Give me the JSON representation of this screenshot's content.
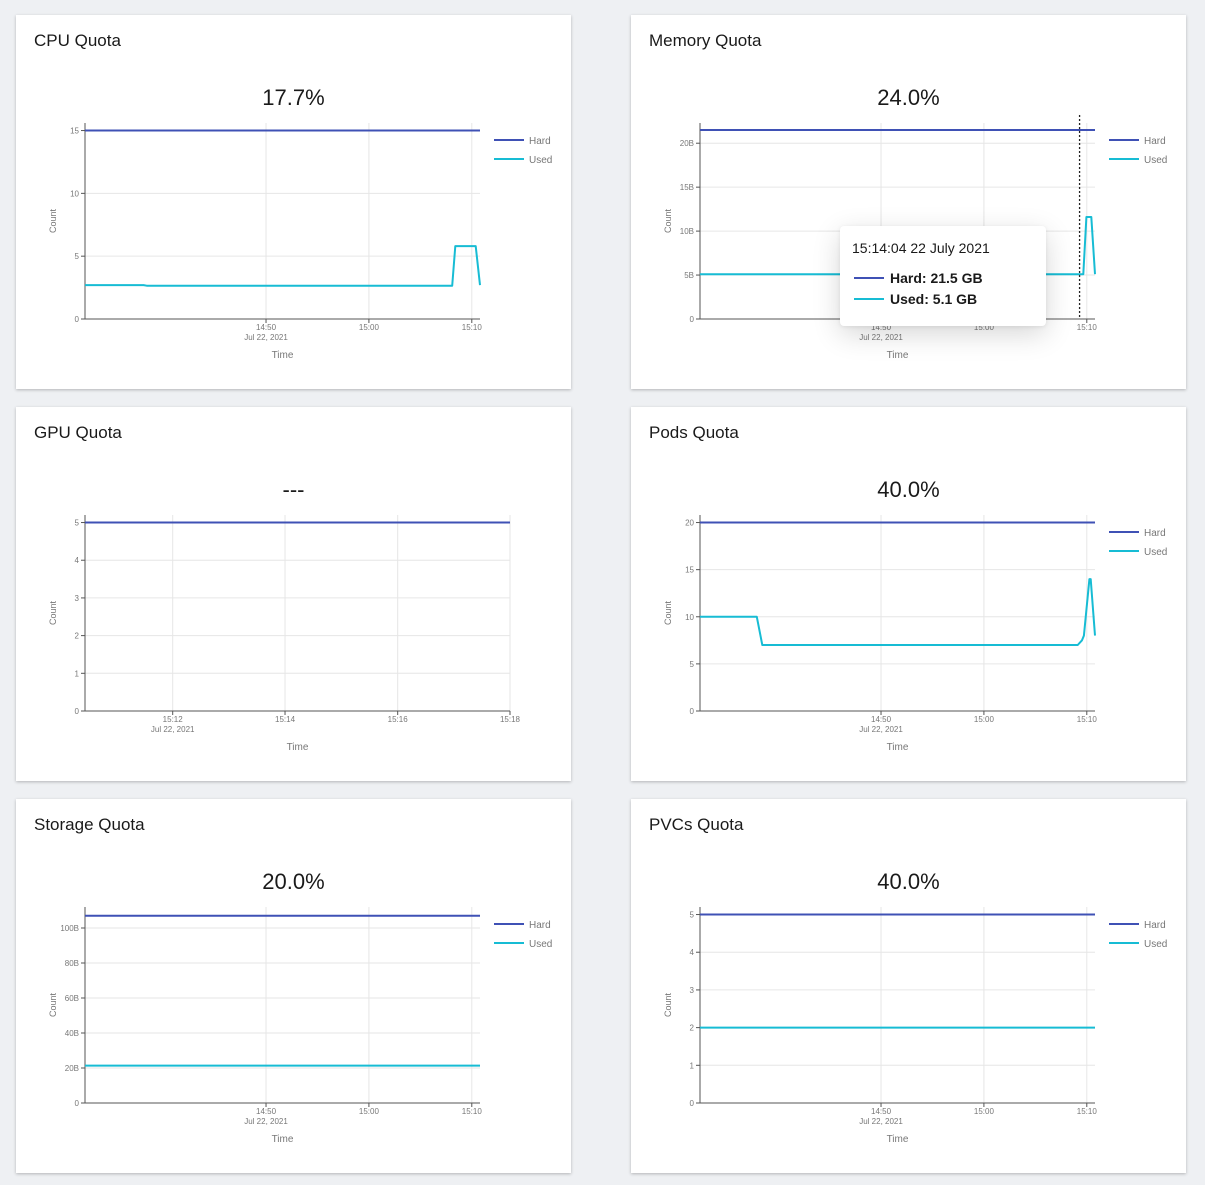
{
  "colors": {
    "hard": "#3f51b5",
    "used": "#17bcd4",
    "grid": "#e6e6e6",
    "axis": "#555555",
    "text": "#777777"
  },
  "common": {
    "ylabel": "Count",
    "xlabel": "Time",
    "legend_hard": "Hard",
    "legend_used": "Used"
  },
  "tooltip": {
    "time": "15:14:04 22 July 2021",
    "hard_label": "Hard: 21.5 GB",
    "used_label": "Used: 5.1 GB"
  },
  "chart_data": [
    {
      "type": "line",
      "title": "CPU Quota",
      "value_text": "17.7%",
      "xlabel": "Time",
      "ylabel": "Count",
      "x_range": [
        14.54,
        15.18
      ],
      "ylim": [
        0,
        15.6
      ],
      "y_ticks": [
        {
          "v": 0,
          "label": "0"
        },
        {
          "v": 5,
          "label": "5"
        },
        {
          "v": 10,
          "label": "10"
        },
        {
          "v": 15,
          "label": "15"
        }
      ],
      "x_ticks": [
        {
          "v": 14.8333,
          "label": "14:50",
          "sub": "Jul 22, 2021"
        },
        {
          "v": 15.0,
          "label": "15:00"
        },
        {
          "v": 15.1667,
          "label": "15:10"
        }
      ],
      "legend": true,
      "series": [
        {
          "name": "Hard",
          "x": [
            14.54,
            15.18
          ],
          "y": [
            15,
            15
          ]
        },
        {
          "name": "Used",
          "x": [
            14.54,
            14.635,
            14.64,
            15.135,
            15.14,
            15.171,
            15.173,
            15.18
          ],
          "y": [
            2.7,
            2.7,
            2.65,
            2.65,
            5.8,
            5.8,
            5.8,
            2.7
          ]
        }
      ]
    },
    {
      "type": "line",
      "title": "Memory Quota",
      "value_text": "24.0%",
      "xlabel": "Time",
      "ylabel": "Count",
      "x_range": [
        14.54,
        15.18
      ],
      "ylim": [
        0,
        22.3
      ],
      "y_ticks": [
        {
          "v": 0,
          "label": "0"
        },
        {
          "v": 5,
          "label": "5B"
        },
        {
          "v": 10,
          "label": "10B"
        },
        {
          "v": 15,
          "label": "15B"
        },
        {
          "v": 20,
          "label": "20B"
        }
      ],
      "x_ticks": [
        {
          "v": 14.8333,
          "label": "14:50",
          "sub": "Jul 22, 2021"
        },
        {
          "v": 15.0,
          "label": "15:00"
        },
        {
          "v": 15.1667,
          "label": "15:10"
        }
      ],
      "legend": true,
      "cursor_x": 15.155,
      "tooltip": true,
      "series": [
        {
          "name": "Hard",
          "x": [
            14.54,
            15.18
          ],
          "y": [
            21.5,
            21.5
          ]
        },
        {
          "name": "Used",
          "x": [
            14.54,
            15.14,
            15.161,
            15.166,
            15.174,
            15.18
          ],
          "y": [
            5.1,
            5.1,
            5.1,
            11.6,
            11.6,
            5.1
          ]
        }
      ]
    },
    {
      "type": "line",
      "title": "GPU Quota",
      "value_text": "---",
      "xlabel": "Time",
      "ylabel": "Count",
      "x_range": [
        15.174,
        15.3
      ],
      "ylim": [
        0,
        5.2
      ],
      "y_ticks": [
        {
          "v": 0,
          "label": "0"
        },
        {
          "v": 1,
          "label": "1"
        },
        {
          "v": 2,
          "label": "2"
        },
        {
          "v": 3,
          "label": "3"
        },
        {
          "v": 4,
          "label": "4"
        },
        {
          "v": 5,
          "label": "5"
        }
      ],
      "x_ticks": [
        {
          "v": 15.2,
          "label": "15:12",
          "sub": "Jul 22, 2021"
        },
        {
          "v": 15.2333,
          "label": "15:14"
        },
        {
          "v": 15.2667,
          "label": "15:16"
        },
        {
          "v": 15.3,
          "label": "15:18"
        }
      ],
      "legend": false,
      "series": [
        {
          "name": "Hard",
          "x": [
            15.174,
            15.3
          ],
          "y": [
            5,
            5
          ]
        }
      ]
    },
    {
      "type": "line",
      "title": "Pods Quota",
      "value_text": "40.0%",
      "xlabel": "Time",
      "ylabel": "Count",
      "x_range": [
        14.54,
        15.18
      ],
      "ylim": [
        0,
        20.8
      ],
      "y_ticks": [
        {
          "v": 0,
          "label": "0"
        },
        {
          "v": 5,
          "label": "5"
        },
        {
          "v": 10,
          "label": "10"
        },
        {
          "v": 15,
          "label": "15"
        },
        {
          "v": 20,
          "label": "20"
        }
      ],
      "x_ticks": [
        {
          "v": 14.8333,
          "label": "14:50",
          "sub": "Jul 22, 2021"
        },
        {
          "v": 15.0,
          "label": "15:00"
        },
        {
          "v": 15.1667,
          "label": "15:10"
        }
      ],
      "legend": true,
      "series": [
        {
          "name": "Hard",
          "x": [
            14.54,
            15.18
          ],
          "y": [
            20,
            20
          ]
        },
        {
          "name": "Used",
          "x": [
            14.54,
            14.632,
            14.641,
            15.152,
            15.159,
            15.162,
            15.171,
            15.173,
            15.18
          ],
          "y": [
            10,
            10,
            7,
            7,
            7.5,
            8,
            14,
            14,
            8
          ]
        }
      ]
    },
    {
      "type": "line",
      "title": "Storage Quota",
      "value_text": "20.0%",
      "xlabel": "Time",
      "ylabel": "Count",
      "x_range": [
        14.54,
        15.18
      ],
      "ylim": [
        0,
        112
      ],
      "y_ticks": [
        {
          "v": 0,
          "label": "0"
        },
        {
          "v": 20,
          "label": "20B"
        },
        {
          "v": 40,
          "label": "40B"
        },
        {
          "v": 60,
          "label": "60B"
        },
        {
          "v": 80,
          "label": "80B"
        },
        {
          "v": 100,
          "label": "100B"
        }
      ],
      "x_ticks": [
        {
          "v": 14.8333,
          "label": "14:50",
          "sub": "Jul 22, 2021"
        },
        {
          "v": 15.0,
          "label": "15:00"
        },
        {
          "v": 15.1667,
          "label": "15:10"
        }
      ],
      "legend": true,
      "series": [
        {
          "name": "Hard",
          "x": [
            14.54,
            15.18
          ],
          "y": [
            107,
            107
          ]
        },
        {
          "name": "Used",
          "x": [
            14.54,
            15.18
          ],
          "y": [
            21.4,
            21.4
          ]
        }
      ]
    },
    {
      "type": "line",
      "title": "PVCs Quota",
      "value_text": "40.0%",
      "xlabel": "Time",
      "ylabel": "Count",
      "x_range": [
        14.54,
        15.18
      ],
      "ylim": [
        0,
        5.2
      ],
      "y_ticks": [
        {
          "v": 0,
          "label": "0"
        },
        {
          "v": 1,
          "label": "1"
        },
        {
          "v": 2,
          "label": "2"
        },
        {
          "v": 3,
          "label": "3"
        },
        {
          "v": 4,
          "label": "4"
        },
        {
          "v": 5,
          "label": "5"
        }
      ],
      "x_ticks": [
        {
          "v": 14.8333,
          "label": "14:50",
          "sub": "Jul 22, 2021"
        },
        {
          "v": 15.0,
          "label": "15:00"
        },
        {
          "v": 15.1667,
          "label": "15:10"
        }
      ],
      "legend": true,
      "series": [
        {
          "name": "Hard",
          "x": [
            14.54,
            15.18
          ],
          "y": [
            5,
            5
          ]
        },
        {
          "name": "Used",
          "x": [
            14.54,
            15.18
          ],
          "y": [
            2,
            2
          ]
        }
      ]
    }
  ]
}
